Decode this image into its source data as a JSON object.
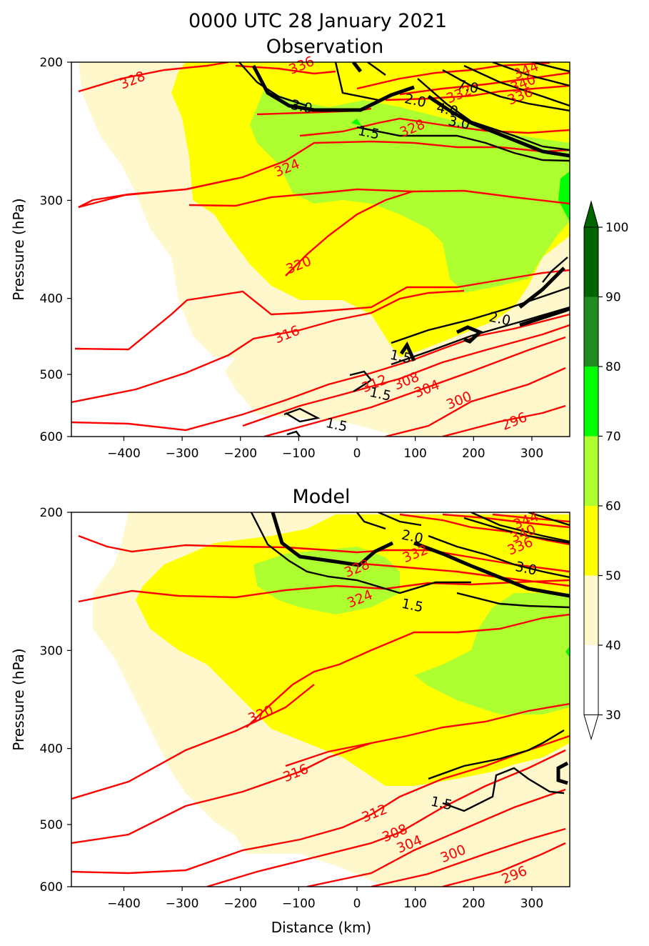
{
  "chart_data": [
    {
      "type": "contour",
      "title": "0000 UTC 28 January 2021",
      "subtitle": "Observation",
      "xlabel": "",
      "ylabel": "Pressure (hPa)",
      "xlim": [
        -490,
        365
      ],
      "ylim": [
        600,
        200
      ],
      "y_scale": "log",
      "xticks": [
        "−400",
        "−300",
        "−200",
        "−100",
        "0",
        "100",
        "200",
        "300"
      ],
      "yticks": [
        "200",
        "300",
        "400",
        "500",
        "600"
      ],
      "theta_labels": [
        {
          "text": "328",
          "x": -385,
          "p": 211
        },
        {
          "text": "336",
          "x": -95,
          "p": 202
        },
        {
          "text": "344",
          "x": 290,
          "p": 205
        },
        {
          "text": "340",
          "x": 285,
          "p": 213
        },
        {
          "text": "336",
          "x": 280,
          "p": 221
        },
        {
          "text": "332",
          "x": 175,
          "p": 220
        },
        {
          "text": "328",
          "x": 95,
          "p": 243
        },
        {
          "text": "324",
          "x": -120,
          "p": 273
        },
        {
          "text": "320",
          "x": -100,
          "p": 363
        },
        {
          "text": "316",
          "x": -120,
          "p": 445
        },
        {
          "text": "312",
          "x": 30,
          "p": 514
        },
        {
          "text": "308",
          "x": 85,
          "p": 510
        },
        {
          "text": "304",
          "x": 120,
          "p": 522
        },
        {
          "text": "300",
          "x": 175,
          "p": 540
        },
        {
          "text": "296",
          "x": 270,
          "p": 574
        }
      ],
      "shear_labels": [
        {
          "text": "3.0",
          "x": -95,
          "p": 228
        },
        {
          "text": "2.0",
          "x": 100,
          "p": 224
        },
        {
          "text": "4.0",
          "x": 155,
          "p": 230
        },
        {
          "text": "3.0",
          "x": 175,
          "p": 239
        },
        {
          "text": "7.0",
          "x": 190,
          "p": 215
        },
        {
          "text": "1.5",
          "x": 20,
          "p": 246
        },
        {
          "text": "2.0",
          "x": 245,
          "p": 425
        },
        {
          "text": "1.5",
          "x": 75,
          "p": 475
        },
        {
          "text": "1.5",
          "x": 40,
          "p": 530
        },
        {
          "text": "1.5",
          "x": -35,
          "p": 580
        }
      ]
    },
    {
      "type": "contour",
      "title": "Model",
      "xlabel": "Distance (km)",
      "ylabel": "Pressure (hPa)",
      "xlim": [
        -490,
        365
      ],
      "ylim": [
        600,
        200
      ],
      "y_scale": "log",
      "xticks": [
        "−400",
        "−300",
        "−200",
        "−100",
        "0",
        "100",
        "200",
        "300"
      ],
      "yticks": [
        "200",
        "300",
        "400",
        "500",
        "600"
      ],
      "theta_labels": [
        {
          "text": "344",
          "x": 290,
          "p": 205
        },
        {
          "text": "340",
          "x": 285,
          "p": 213
        },
        {
          "text": "336",
          "x": 280,
          "p": 221
        },
        {
          "text": "332",
          "x": 100,
          "p": 226
        },
        {
          "text": "328",
          "x": 0,
          "p": 236
        },
        {
          "text": "324",
          "x": 5,
          "p": 258
        },
        {
          "text": "320",
          "x": -165,
          "p": 362
        },
        {
          "text": "316",
          "x": -105,
          "p": 430
        },
        {
          "text": "312",
          "x": 30,
          "p": 484
        },
        {
          "text": "308",
          "x": 65,
          "p": 513
        },
        {
          "text": "304",
          "x": 90,
          "p": 530
        },
        {
          "text": "300",
          "x": 165,
          "p": 545
        },
        {
          "text": "296",
          "x": 270,
          "p": 580
        }
      ],
      "shear_labels": [
        {
          "text": "2.0",
          "x": 95,
          "p": 215
        },
        {
          "text": "3.0",
          "x": 290,
          "p": 236
        },
        {
          "text": "1.5",
          "x": 95,
          "p": 263
        },
        {
          "text": "1.5",
          "x": 145,
          "p": 470
        }
      ]
    }
  ],
  "colorbar": {
    "levels": [
      "30",
      "40",
      "50",
      "60",
      "70",
      "80",
      "90",
      "100"
    ],
    "colors": [
      "#ffffff",
      "#fff8cc",
      "#ffff00",
      "#adff2f",
      "#00ff00",
      "#228b22",
      "#006400"
    ],
    "extend": "both"
  }
}
